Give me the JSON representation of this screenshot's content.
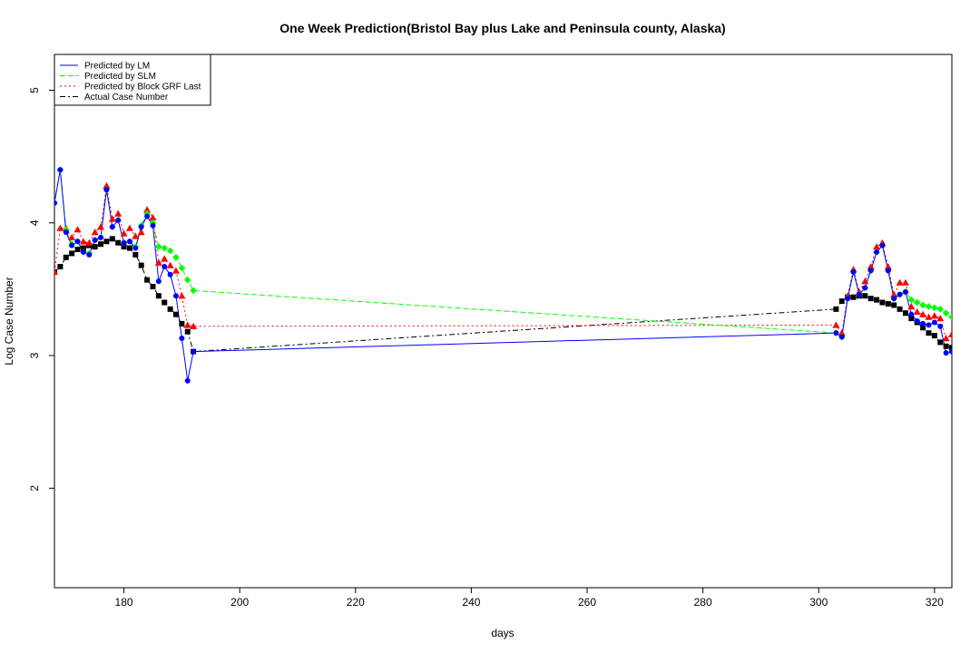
{
  "chart_data": {
    "type": "line",
    "title": "One Week Prediction(Bristol Bay plus Lake and Peninsula county, Alaska)",
    "xlabel": "days",
    "ylabel": "Log Case Number",
    "xlim": [
      168,
      323
    ],
    "ylim": [
      1.25,
      5.27
    ],
    "x_ticks": [
      180,
      200,
      220,
      240,
      260,
      280,
      300,
      320
    ],
    "y_ticks": [
      2,
      3,
      4,
      5
    ],
    "grid": false,
    "legend_position": "top-left",
    "series": [
      {
        "name": "Predicted by LM",
        "color": "#0000ff",
        "line": "solid",
        "marker": "circle",
        "x": [
          168,
          169,
          170,
          171,
          172,
          173,
          174,
          175,
          176,
          177,
          178,
          179,
          180,
          181,
          182,
          183,
          184,
          185,
          186,
          187,
          188,
          189,
          190,
          191,
          192,
          303,
          304,
          305,
          306,
          307,
          308,
          309,
          310,
          311,
          312,
          313,
          314,
          315,
          316,
          317,
          318,
          319,
          320,
          321,
          322,
          323
        ],
        "y": [
          4.15,
          4.4,
          3.93,
          3.83,
          3.86,
          3.78,
          3.76,
          3.87,
          3.89,
          4.25,
          3.97,
          4.02,
          3.85,
          3.86,
          3.81,
          3.97,
          4.05,
          3.98,
          3.56,
          3.67,
          3.61,
          3.45,
          3.13,
          2.81,
          3.03,
          3.17,
          3.14,
          3.43,
          3.63,
          3.46,
          3.51,
          3.64,
          3.78,
          3.83,
          3.64,
          3.43,
          3.46,
          3.48,
          3.31,
          3.26,
          3.24,
          3.23,
          3.25,
          3.22,
          3.02,
          3.03
        ]
      },
      {
        "name": "Predicted by SLM",
        "color": "#00ff00",
        "line": "dashed",
        "marker": "diamond",
        "x": [
          168,
          169,
          170,
          171,
          172,
          173,
          174,
          175,
          176,
          177,
          178,
          179,
          180,
          181,
          182,
          183,
          184,
          185,
          186,
          187,
          188,
          189,
          190,
          191,
          192,
          303,
          304,
          305,
          306,
          307,
          308,
          309,
          310,
          311,
          312,
          313,
          314,
          315,
          316,
          317,
          318,
          319,
          320,
          321,
          322,
          323
        ],
        "y": [
          4.15,
          4.4,
          3.95,
          3.84,
          3.86,
          3.78,
          3.77,
          3.87,
          3.89,
          4.25,
          3.97,
          4.02,
          3.85,
          3.86,
          3.82,
          3.98,
          4.07,
          4.0,
          3.82,
          3.81,
          3.79,
          3.74,
          3.66,
          3.57,
          3.49,
          3.17,
          3.14,
          3.43,
          3.63,
          3.46,
          3.51,
          3.64,
          3.78,
          3.83,
          3.64,
          3.43,
          3.46,
          3.48,
          3.42,
          3.4,
          3.38,
          3.37,
          3.36,
          3.35,
          3.32,
          3.29
        ]
      },
      {
        "name": "Predicted by Block GRF Last",
        "color": "#ff0000",
        "line": "dotted",
        "marker": "triangle",
        "x": [
          168,
          169,
          170,
          171,
          172,
          173,
          174,
          175,
          176,
          177,
          178,
          179,
          180,
          181,
          182,
          183,
          184,
          185,
          186,
          187,
          188,
          189,
          190,
          191,
          192,
          303,
          304,
          305,
          306,
          307,
          308,
          309,
          310,
          311,
          312,
          313,
          314,
          315,
          316,
          317,
          318,
          319,
          320,
          321,
          322,
          323
        ],
        "y": [
          3.63,
          3.96,
          3.96,
          3.89,
          3.95,
          3.86,
          3.85,
          3.93,
          3.97,
          4.28,
          4.03,
          4.07,
          3.92,
          3.96,
          3.9,
          3.93,
          4.1,
          4.04,
          3.7,
          3.73,
          3.68,
          3.64,
          3.45,
          3.23,
          3.22,
          3.23,
          3.17,
          3.45,
          3.65,
          3.48,
          3.56,
          3.67,
          3.82,
          3.85,
          3.67,
          3.46,
          3.55,
          3.55,
          3.37,
          3.33,
          3.31,
          3.29,
          3.3,
          3.28,
          3.13,
          3.16
        ]
      },
      {
        "name": "Actual Case Number",
        "color": "#000000",
        "line": "dashdot",
        "marker": "square",
        "x": [
          168,
          169,
          170,
          171,
          172,
          173,
          174,
          175,
          176,
          177,
          178,
          179,
          180,
          181,
          182,
          183,
          184,
          185,
          186,
          187,
          188,
          189,
          190,
          191,
          192,
          303,
          304,
          305,
          306,
          307,
          308,
          309,
          310,
          311,
          312,
          313,
          314,
          315,
          316,
          317,
          318,
          319,
          320,
          321,
          322,
          323
        ],
        "y": [
          3.63,
          3.67,
          3.74,
          3.77,
          3.8,
          3.81,
          3.83,
          3.82,
          3.84,
          3.86,
          3.88,
          3.85,
          3.82,
          3.81,
          3.76,
          3.68,
          3.57,
          3.52,
          3.45,
          3.4,
          3.35,
          3.31,
          3.24,
          3.18,
          3.03,
          3.35,
          3.41,
          3.44,
          3.44,
          3.45,
          3.45,
          3.43,
          3.42,
          3.4,
          3.39,
          3.38,
          3.35,
          3.32,
          3.28,
          3.25,
          3.21,
          3.17,
          3.15,
          3.1,
          3.07,
          3.06
        ]
      }
    ]
  }
}
